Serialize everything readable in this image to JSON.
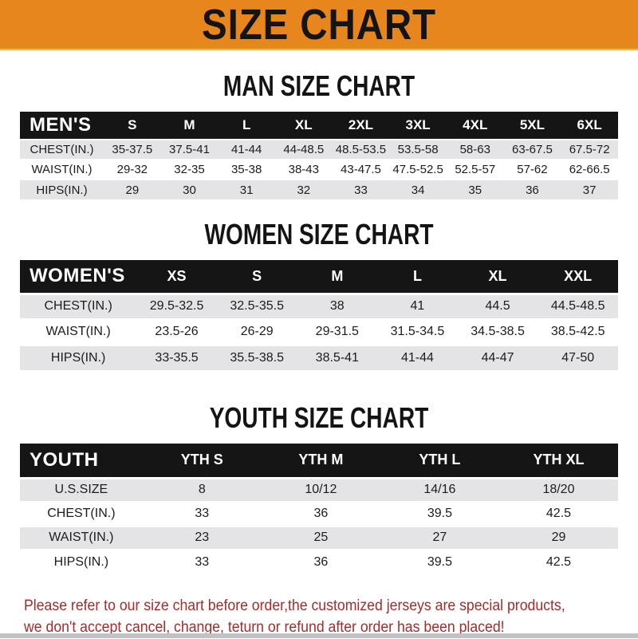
{
  "banner": {
    "title": "SIZE CHART",
    "bg_color": "#E8861E",
    "text_color": "#141414"
  },
  "colors": {
    "header_bar_bg": "#151515",
    "header_bar_text": "#FFFFFF",
    "row_alt_bg": "#E4E4E6",
    "disclaimer_text": "#A12D2D"
  },
  "sections": {
    "men": {
      "title": "MAN SIZE CHART",
      "header_label": "MEN'S",
      "columns": [
        "S",
        "M",
        "L",
        "XL",
        "2XL",
        "3XL",
        "4XL",
        "5XL",
        "6XL"
      ],
      "rows": [
        {
          "label": "CHEST(IN.)",
          "values": [
            "35-37.5",
            "37.5-41",
            "41-44",
            "44-48.5",
            "48.5-53.5",
            "53.5-58",
            "58-63",
            "63-67.5",
            "67.5-72"
          ]
        },
        {
          "label": "WAIST(IN.)",
          "values": [
            "29-32",
            "32-35",
            "35-38",
            "38-43",
            "43-47.5",
            "47.5-52.5",
            "52.5-57",
            "57-62",
            "62-66.5"
          ]
        },
        {
          "label": "HIPS(IN.)",
          "values": [
            "29",
            "30",
            "31",
            "32",
            "33",
            "34",
            "35",
            "36",
            "37"
          ]
        }
      ]
    },
    "women": {
      "title": "WOMEN SIZE CHART",
      "header_label": "WOMEN'S",
      "columns": [
        "XS",
        "S",
        "M",
        "L",
        "XL",
        "XXL"
      ],
      "rows": [
        {
          "label": "CHEST(IN.)",
          "values": [
            "29.5-32.5",
            "32.5-35.5",
            "38",
            "41",
            "44.5",
            "44.5-48.5"
          ]
        },
        {
          "label": "WAIST(IN.)",
          "values": [
            "23.5-26",
            "26-29",
            "29-31.5",
            "31.5-34.5",
            "34.5-38.5",
            "38.5-42.5"
          ]
        },
        {
          "label": "HIPS(IN.)",
          "values": [
            "33-35.5",
            "35.5-38.5",
            "38.5-41",
            "41-44",
            "44-47",
            "47-50"
          ]
        }
      ]
    },
    "youth": {
      "title": "YOUTH SIZE CHART",
      "header_label": "YOUTH",
      "columns": [
        "YTH S",
        "YTH M",
        "YTH L",
        "YTH XL"
      ],
      "rows": [
        {
          "label": "U.S.SIZE",
          "values": [
            "8",
            "10/12",
            "14/16",
            "18/20"
          ]
        },
        {
          "label": "CHEST(IN.)",
          "values": [
            "33",
            "36",
            "39.5",
            "42.5"
          ]
        },
        {
          "label": "WAIST(IN.)",
          "values": [
            "23",
            "25",
            "27",
            "29"
          ]
        },
        {
          "label": "HIPS(IN.)",
          "values": [
            "33",
            "36",
            "39.5",
            "42.5"
          ]
        }
      ]
    }
  },
  "disclaimer": {
    "line1": "Please refer to our size chart before order,the customized jerseys are special products,",
    "line2": "we don't accept cancel, change, teturn or refund after order has been placed!"
  }
}
